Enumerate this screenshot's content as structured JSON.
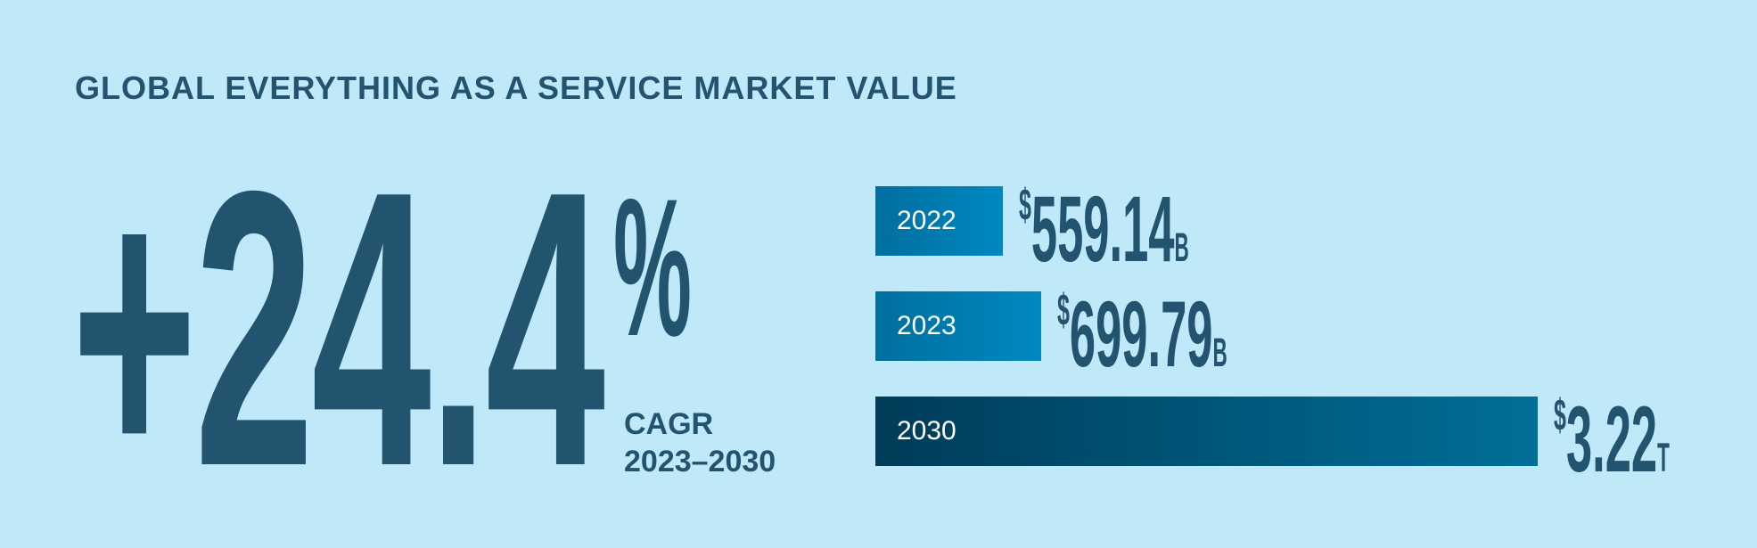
{
  "title": "GLOBAL EVERYTHING AS A SERVICE MARKET VALUE",
  "headline": {
    "value": "+24.4",
    "unit": "%",
    "label": "CAGR",
    "period": "2023–2030"
  },
  "colors": {
    "background": "#bfe8f8",
    "text": "#22536f",
    "bar_light": "#0088c0",
    "bar_dark": "#003c58"
  },
  "chart_data": {
    "type": "bar",
    "orientation": "horizontal",
    "categories": [
      "2022",
      "2023",
      "2030"
    ],
    "values": [
      559.14,
      699.79,
      3220
    ],
    "value_unit": "USD billions",
    "labels": [
      {
        "currency": "$",
        "amount": "559.14",
        "unit": "B"
      },
      {
        "currency": "$",
        "amount": "699.79",
        "unit": "B"
      },
      {
        "currency": "$",
        "amount": "3.22",
        "unit": "T"
      }
    ]
  }
}
